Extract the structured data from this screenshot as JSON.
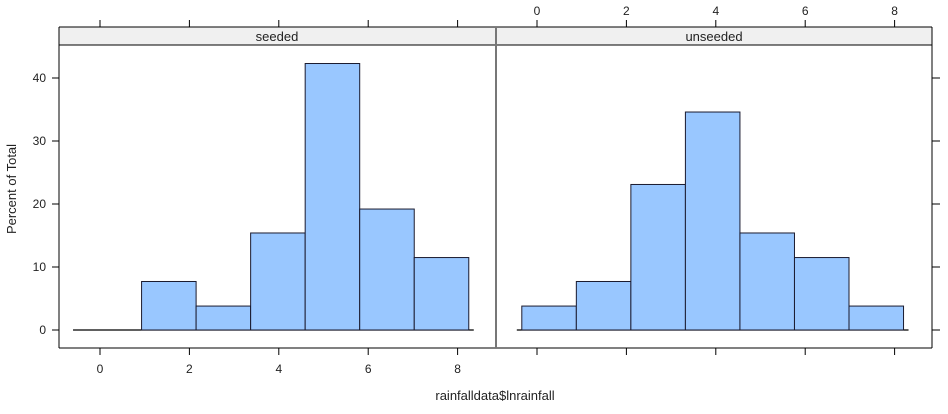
{
  "chart_data": {
    "type": "bar",
    "subtype": "histogram (lattice, conditioned panels)",
    "xlabel": "rainfalldata$lnrainfall",
    "ylabel": "Percent of Total",
    "xlim": [
      -0.9,
      9.0
    ],
    "ylim": [
      -2.1,
      45
    ],
    "x_ticks": [
      0,
      2,
      4,
      6,
      8
    ],
    "y_ticks": [
      0,
      10,
      20,
      30,
      40
    ],
    "fill_color": "#99c7ff",
    "border_color": "#1a1a2e",
    "strip_color": "#f0f0f0",
    "grid": false,
    "panels": [
      {
        "name": "seeded",
        "bin_edges": [
          -0.29,
          0.93,
          2.15,
          3.37,
          4.59,
          5.81,
          7.03,
          8.25
        ],
        "values": [
          0,
          7.7,
          3.8,
          15.4,
          42.3,
          19.2,
          11.5
        ]
      },
      {
        "name": "unseeded",
        "bin_edges": [
          -0.34,
          0.88,
          2.1,
          3.32,
          4.54,
          5.76,
          6.98,
          8.2
        ],
        "values": [
          3.8,
          7.7,
          23.1,
          34.6,
          15.4,
          11.5,
          3.8
        ]
      }
    ]
  },
  "labels": {
    "ylabel": "Percent of Total",
    "xlabel": "rainfalldata$lnrainfall",
    "strip_left": "seeded",
    "strip_right": "unseeded",
    "x_tick_labels": [
      "0",
      "2",
      "4",
      "6",
      "8"
    ],
    "y_tick_labels": [
      "0",
      "10",
      "20",
      "30",
      "40"
    ]
  }
}
